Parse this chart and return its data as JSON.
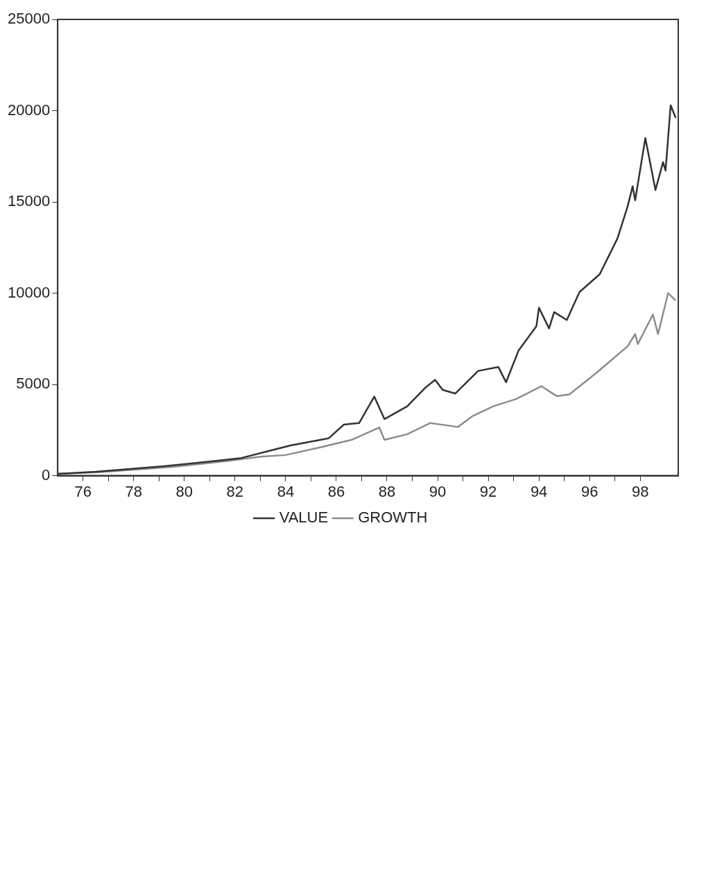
{
  "chart_data": {
    "type": "line",
    "legend": "bottom",
    "grid": false,
    "marker": "none",
    "line_style": "solid",
    "xlim": [
      75,
      99.5
    ],
    "ylim": [
      0,
      25000
    ],
    "xticks": [
      76,
      {
        "value": 77,
        "label": null
      },
      78,
      {
        "value": 79,
        "label": null
      },
      80,
      {
        "value": 81,
        "label": null
      },
      82,
      {
        "value": 83,
        "label": null
      },
      84,
      {
        "value": 85,
        "label": null
      },
      86,
      {
        "value": 87,
        "label": null
      },
      88,
      {
        "value": 89,
        "label": null
      },
      90,
      {
        "value": 91,
        "label": null
      },
      92,
      {
        "value": 93,
        "label": null
      },
      94,
      {
        "value": 95,
        "label": null
      },
      96,
      {
        "value": 97,
        "label": null
      },
      98
    ],
    "yticks": [
      0,
      5000,
      10000,
      15000,
      20000,
      25000
    ],
    "series": [
      {
        "name": "VALUE",
        "color": "#333333",
        "x": [
          75,
          76.5,
          79.2,
          81.2,
          82.2,
          83.5,
          84.2,
          85.7,
          86.3,
          86.9,
          87.5,
          87.9,
          88.8,
          89.5,
          89.9,
          90.2,
          90.7,
          91.6,
          92.4,
          92.7,
          93.2,
          93.9,
          94,
          94.4,
          94.6,
          95.1,
          95.6,
          96.4,
          97.1,
          97.5,
          97.7,
          97.8,
          98.2,
          98.6,
          98.9,
          99,
          99.2,
          99.4
        ],
        "values": [
          100,
          215,
          520,
          800,
          950,
          1410,
          1660,
          2050,
          2800,
          2880,
          4330,
          3100,
          3800,
          4800,
          5250,
          4700,
          4500,
          5740,
          5950,
          5120,
          6870,
          8190,
          9200,
          8070,
          8960,
          8530,
          10060,
          11040,
          13000,
          14750,
          15860,
          15090,
          18500,
          15650,
          17180,
          16720,
          20300,
          19600
        ]
      },
      {
        "name": "GROWTH",
        "color": "#8c8c8c",
        "x": [
          75,
          76.6,
          79.6,
          81.7,
          83,
          84,
          85.4,
          86.6,
          87.7,
          87.9,
          88.8,
          89.7,
          90.8,
          91.4,
          92.2,
          93.1,
          94.1,
          94.7,
          95.2,
          96.3,
          97.5,
          97.8,
          97.9,
          98.5,
          98.7,
          99.1,
          99.4
        ],
        "values": [
          100,
          180,
          490,
          800,
          1040,
          1130,
          1560,
          1960,
          2640,
          1960,
          2270,
          2880,
          2670,
          3280,
          3800,
          4200,
          4900,
          4360,
          4450,
          5670,
          7090,
          7760,
          7210,
          8830,
          7760,
          10000,
          9600
        ]
      }
    ]
  }
}
